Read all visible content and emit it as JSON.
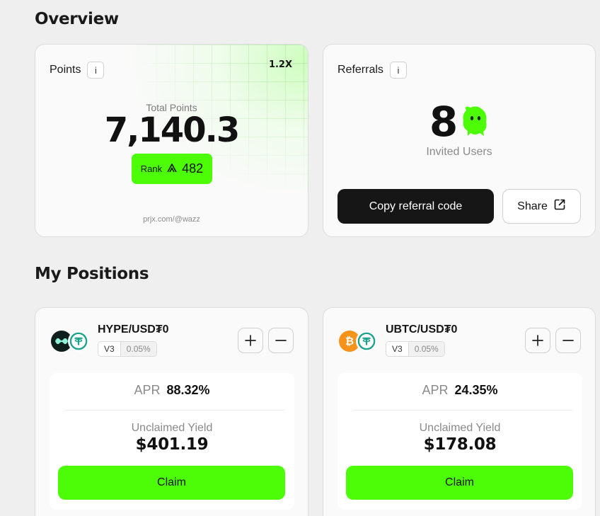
{
  "overview": {
    "title": "Overview",
    "points": {
      "label": "Points",
      "info": "i",
      "multiplier": "1.2X",
      "total_label": "Total Points",
      "total_value": "7,140.3",
      "rank_label": "Rank",
      "rank_value": "482",
      "footer": "prjx.com/@wazz"
    },
    "referrals": {
      "label": "Referrals",
      "info": "i",
      "invited_count": "8",
      "invited_label": "Invited Users",
      "copy_button": "Copy referral code",
      "share_button": "Share"
    }
  },
  "positions": {
    "title": "My Positions",
    "items": [
      {
        "pair": "HYPE/USD₮0",
        "version": "V3",
        "fee": "0.05%",
        "apr_label": "APR",
        "apr_value": "88.32%",
        "yield_label": "Unclaimed Yield",
        "yield_value": "$401.19",
        "claim_label": "Claim",
        "token_a_icon": "hype-icon",
        "token_b_icon": "usdt0-icon"
      },
      {
        "pair": "UBTC/USD₮0",
        "version": "V3",
        "fee": "0.05%",
        "apr_label": "APR",
        "apr_value": "24.35%",
        "yield_label": "Unclaimed Yield",
        "yield_value": "$178.08",
        "claim_label": "Claim",
        "token_a_icon": "bitcoin-icon",
        "token_b_icon": "usdt0-icon"
      }
    ]
  },
  "colors": {
    "accent_green": "#4dfd07",
    "dark_button": "#161616",
    "background": "#efefef"
  }
}
